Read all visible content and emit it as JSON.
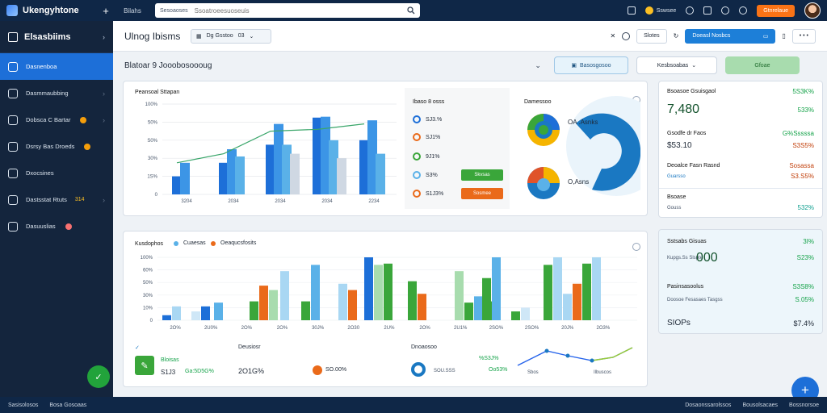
{
  "app": {
    "name": "Ukengyhtone",
    "nav": "Bilahs",
    "search_placeholder": "Sesoaoses",
    "search_scope": "Ssoatroeesuoseuis",
    "user": "Sswsee",
    "upgrade": "Gtnrelaue"
  },
  "sidebar": {
    "title": "Elsasbiims",
    "items": [
      {
        "label": "Dasnenboa",
        "icon": "dashboard-icon",
        "active": true
      },
      {
        "label": "Dasmmaubbing",
        "icon": "layers-icon"
      },
      {
        "label": "Dobsca C Bartar",
        "icon": "pen-icon"
      },
      {
        "label": "Dsrsy Bas Droeds",
        "icon": "palette-icon"
      },
      {
        "label": "Dxocsines",
        "icon": "calendar-icon"
      },
      {
        "label": "Dastsstat Rtuts",
        "sub": "314",
        "icon": "tools-icon"
      },
      {
        "label": "Dasuuslias",
        "icon": "folder-icon"
      }
    ]
  },
  "header": {
    "title": "Ulnog Ibisms",
    "date_label": "Dg Gsstoo",
    "date_value": "03",
    "btn_share": "Slotes",
    "btn_primary": "Doeasl Nosbcs"
  },
  "subheader": {
    "title": "Blatoar 9 Jooobosoooug",
    "btn_outline": "Basosgosoo",
    "btn_gray": "Kesbsoabas",
    "btn_green": "Gfoae"
  },
  "card1": {
    "title": "Peansoal Sttapan",
    "legend_title": "Ibaso 8 osss",
    "legend": [
      {
        "label": "SJ3.%",
        "color": "#1d6fd8"
      },
      {
        "label": "SJ1%",
        "color": "#ea6a1a"
      },
      {
        "label": "9J1%",
        "color": "#3aa63a"
      },
      {
        "label": "S3%",
        "color": "#5ab1e8"
      },
      {
        "label": "S1J3%",
        "color": "#ea6a1a"
      }
    ],
    "tag_green": "Skvsas",
    "tag_orange": "Sosmee",
    "donut_title": "Damessoo",
    "donut_label1": "OA .Asnks",
    "donut_label2": "O,Asns"
  },
  "card2": {
    "title": "Kusdophos",
    "legend": [
      {
        "label": "Cuaesas",
        "color": "#5ab1e8"
      },
      {
        "label": "Oeaqucsfosits",
        "color": "#ea6a1a"
      }
    ],
    "stat1_label": "Bloisas",
    "stat1_value": "S1J3",
    "stat1_pct": "Ga:5D5G%",
    "stat2_label": "Deusiosr",
    "stat2_value": "2O1G%",
    "stat2_pct": "SO.00%",
    "stat3_label": "Dnoaosoo",
    "stat3_pct1": "%S3J%",
    "stat3_pct2": "Oo53%",
    "stat3_small": "SOU.SSS",
    "trend_small1": "Sbos",
    "trend_small2": "Ilbuscos"
  },
  "chart_data": [
    {
      "type": "bar",
      "title": "Peansoal Sttapan",
      "categories": [
        "3204",
        "2034",
        "2034",
        "2034",
        "2234"
      ],
      "ylim": [
        0,
        100
      ],
      "y_ticks": [
        "0",
        "1S%",
        "30%",
        "S0%",
        "50%",
        "100%"
      ],
      "series": [
        {
          "values": [
            20,
            35,
            55,
            85,
            60
          ]
        },
        {
          "values": [
            35,
            50,
            78,
            86,
            82
          ]
        },
        {
          "values": [
            0,
            42,
            55,
            60,
            45
          ]
        },
        {
          "values": [
            0,
            0,
            45,
            40,
            0
          ]
        }
      ],
      "line": [
        35,
        45,
        70,
        72,
        78
      ]
    },
    {
      "type": "bar",
      "title": "Kusdophos",
      "categories": [
        "2O%",
        "2U0%",
        "2O%",
        "2O%",
        "30J%",
        "2O30",
        "2U%",
        "2O%",
        "2U1%",
        "2SO%",
        "2SO%",
        "20J%",
        "2O3%"
      ],
      "ylim": [
        0,
        100
      ],
      "y_ticks": [
        "0",
        "10%",
        "30%",
        "50%",
        "60%",
        "100%"
      ]
    }
  ],
  "right_panel": {
    "r1_label": "Bsoasoe Gsuisgaol",
    "r1_pct": "5S3K%",
    "r1_big": "7,480",
    "r1_pct2": "533%",
    "r2_label": "Gsodfe dr Faos",
    "r2_pct": "G%Sssssa",
    "r2_value": "$53.10",
    "r2_pct2": "S3S5%",
    "r3_label": "Deoalce Fasn Rasnd",
    "r3_pct": "Sosassa",
    "r3_sub": "Guarsso",
    "r3_pct2": "S3.S5%",
    "r4_label": "Bsoase",
    "r4_sub": "Gouss",
    "r4_pct": "532%",
    "r5_label": "Sstsabs Gisuas",
    "r5_pct": "3I%",
    "r5_big": "000",
    "r5_sub": "Kupgs.Ss Slspte",
    "r5_pct2": "S23%",
    "r6_label": "Pasinsasoolus",
    "r6_pct": "S3S8%",
    "r6_sub": "Doosoe Fesasaes Tasgss",
    "r6_pct2": "S.05%",
    "r7_label": "SIOPs",
    "r7_pct": "$7.4%"
  },
  "bottom": {
    "left": "Sasisolosos",
    "left2": "Bosa Gosoaas",
    "right1": "Dosaonssarolssos",
    "right2": "Bousolsacaes",
    "right3": "Bossnorsoe"
  }
}
